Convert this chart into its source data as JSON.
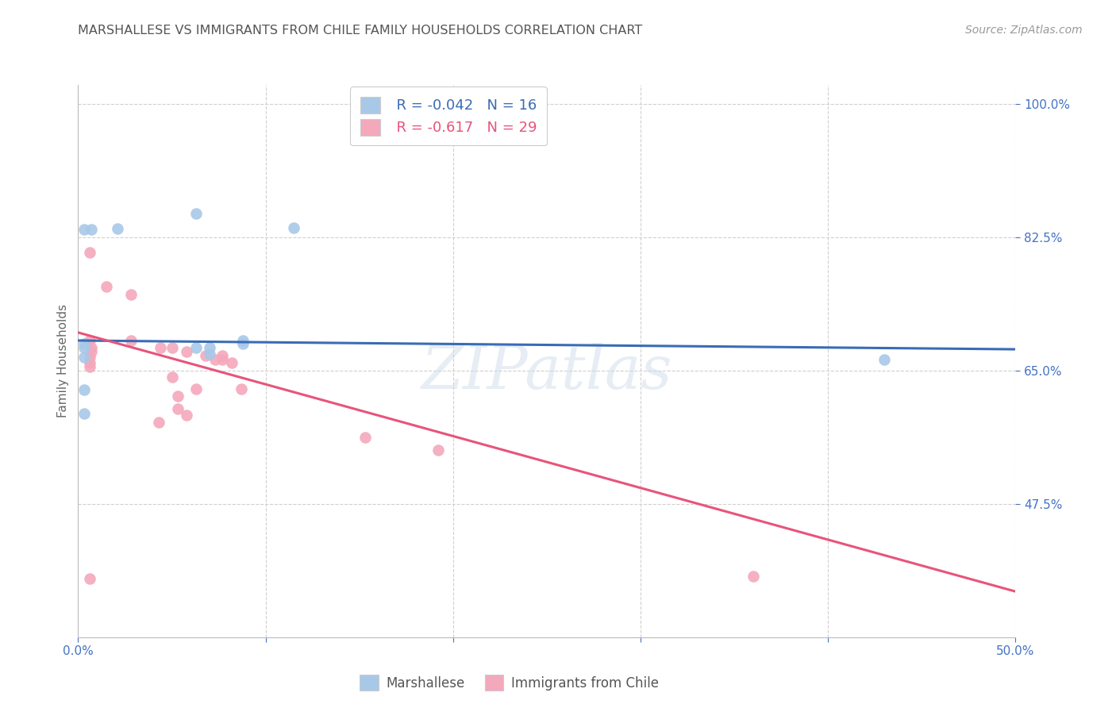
{
  "title": "MARSHALLESE VS IMMIGRANTS FROM CHILE FAMILY HOUSEHOLDS CORRELATION CHART",
  "source": "Source: ZipAtlas.com",
  "ylabel": "Family Households",
  "xlim": [
    0.0,
    0.5
  ],
  "ylim": [
    0.3,
    1.025
  ],
  "xticks": [
    0.0,
    0.1,
    0.2,
    0.3,
    0.4,
    0.5
  ],
  "xticklabels": [
    "0.0%",
    "",
    "",
    "",
    "",
    "50.0%"
  ],
  "yticks": [
    0.475,
    0.65,
    0.825,
    1.0
  ],
  "yticklabels": [
    "47.5%",
    "65.0%",
    "82.5%",
    "100.0%"
  ],
  "legend_labels": [
    "Marshallese",
    "Immigrants from Chile"
  ],
  "blue_color": "#a8c8e8",
  "pink_color": "#f4a8bc",
  "blue_line_color": "#3a6cb5",
  "pink_line_color": "#e8547a",
  "R_blue": -0.042,
  "N_blue": 16,
  "R_pink": -0.617,
  "N_pink": 29,
  "blue_points_x": [
    0.003,
    0.007,
    0.021,
    0.063,
    0.003,
    0.063,
    0.07,
    0.07,
    0.003,
    0.003,
    0.43,
    0.003,
    0.115,
    0.088,
    0.088,
    0.003
  ],
  "blue_points_y": [
    0.835,
    0.835,
    0.836,
    0.856,
    0.68,
    0.68,
    0.68,
    0.672,
    0.685,
    0.668,
    0.665,
    0.594,
    0.837,
    0.69,
    0.685,
    0.625
  ],
  "pink_points_x": [
    0.006,
    0.015,
    0.028,
    0.028,
    0.006,
    0.007,
    0.007,
    0.006,
    0.006,
    0.006,
    0.044,
    0.05,
    0.05,
    0.058,
    0.068,
    0.073,
    0.077,
    0.077,
    0.082,
    0.063,
    0.053,
    0.053,
    0.058,
    0.043,
    0.087,
    0.153,
    0.192,
    0.006,
    0.36
  ],
  "pink_points_y": [
    0.805,
    0.76,
    0.75,
    0.69,
    0.69,
    0.68,
    0.675,
    0.668,
    0.66,
    0.655,
    0.68,
    0.68,
    0.642,
    0.675,
    0.67,
    0.665,
    0.67,
    0.665,
    0.66,
    0.626,
    0.617,
    0.6,
    0.592,
    0.582,
    0.626,
    0.562,
    0.546,
    0.377,
    0.38
  ],
  "blue_trend_x": [
    0.0,
    0.5
  ],
  "blue_trend_y": [
    0.6895,
    0.678
  ],
  "pink_trend_x": [
    0.0,
    0.5
  ],
  "pink_trend_y": [
    0.7,
    0.36
  ],
  "watermark": "ZIPatlas",
  "background_color": "#ffffff",
  "grid_color": "#d0d0d0",
  "title_color": "#555555",
  "axis_label_color": "#666666",
  "tick_label_color": "#4472c4",
  "marker_size": 110
}
